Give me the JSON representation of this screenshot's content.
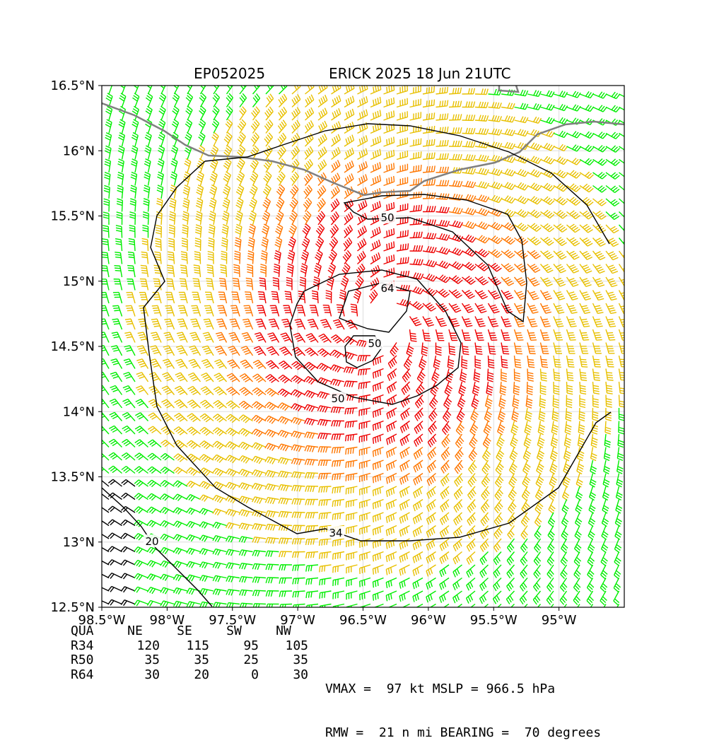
{
  "title": {
    "storm_id": "EP052025",
    "storm_name_time": "ERICK 2025 18 Jun 21UTC"
  },
  "axes": {
    "x_ticks": [
      "98.5°W",
      "98°W",
      "97.5°W",
      "97°W",
      "96.5°W",
      "96°W",
      "95.5°W",
      "95°W"
    ],
    "y_ticks": [
      "16.5°N",
      "16°N",
      "15.5°N",
      "15°N",
      "14.5°N",
      "14°N",
      "13.5°N",
      "13°N",
      "12.5°N"
    ],
    "lon_range": [
      -98.5,
      -94.5
    ],
    "lat_range": [
      12.5,
      16.5
    ]
  },
  "contour_labels": [
    "50",
    "64",
    "50",
    "50",
    "34",
    "20"
  ],
  "wind_radii": {
    "header": [
      "QUA",
      "NE",
      "SE",
      "SW",
      "NW"
    ],
    "rows": [
      {
        "label": "R34",
        "values": [
          "120",
          "115",
          "95",
          "105"
        ]
      },
      {
        "label": "R50",
        "values": [
          "35",
          "35",
          "25",
          "35"
        ]
      },
      {
        "label": "R64",
        "values": [
          "30",
          "20",
          "0",
          "30"
        ]
      }
    ]
  },
  "info_lines": [
    "VMAX =  97 kt MSLP = 966.5 hPa",
    "RMW =  21 n mi BEARING =  70 degrees"
  ],
  "colors": {
    "lt34": "#00ee00",
    "r34": "#e8c000",
    "r50": "#ff7700",
    "r64": "#ee0000",
    "weak": "#000000",
    "coast": "#808080",
    "grid": "#dddddd",
    "contour": "#000000"
  },
  "storm_center": {
    "lon": -96.35,
    "lat": 14.68
  }
}
